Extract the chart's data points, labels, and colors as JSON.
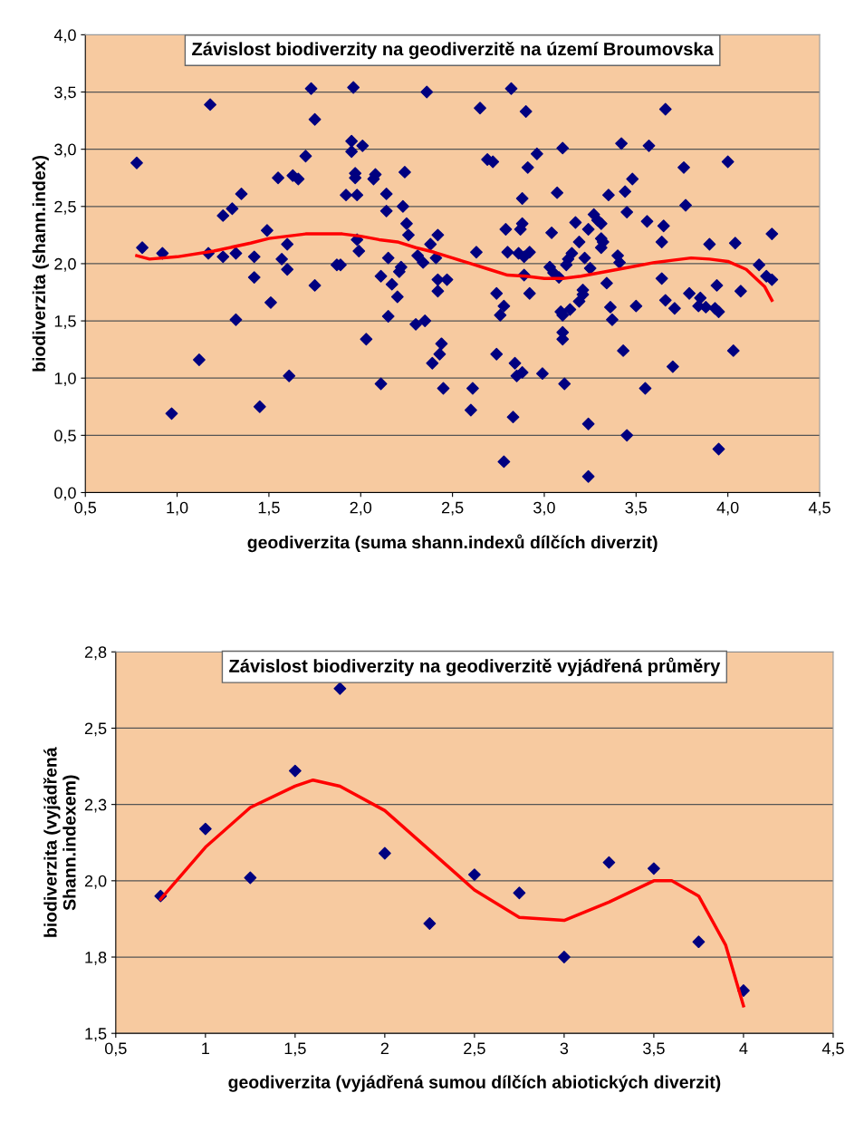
{
  "chart_data": [
    {
      "type": "scatter",
      "title": "Závislost biodiverzity na geodiverzitě na území Broumovska",
      "xlabel": "geodiverzita (suma shann.indexů dílčích diverzit)",
      "ylabel": "biodiverzita (shann.index)",
      "xlim": [
        0.5,
        4.5
      ],
      "xticks": [
        {
          "value": 0.5,
          "label": "0,5"
        },
        {
          "value": 1.0,
          "label": "1,0"
        },
        {
          "value": 1.5,
          "label": "1,5"
        },
        {
          "value": 2.0,
          "label": "2,0"
        },
        {
          "value": 2.5,
          "label": "2,5"
        },
        {
          "value": 3.0,
          "label": "3,0"
        },
        {
          "value": 3.5,
          "label": "3,5"
        },
        {
          "value": 4.0,
          "label": "4,0"
        },
        {
          "value": 4.5,
          "label": "4,5"
        }
      ],
      "ylim": [
        0,
        4
      ],
      "yticks": [
        {
          "value": 0,
          "label": "0,0"
        },
        {
          "value": 0.5,
          "label": "0,5"
        },
        {
          "value": 1.0,
          "label": "1,0"
        },
        {
          "value": 1.5,
          "label": "1,5"
        },
        {
          "value": 2.0,
          "label": "2,0"
        },
        {
          "value": 2.5,
          "label": "2,5"
        },
        {
          "value": 3.0,
          "label": "3,0"
        },
        {
          "value": 3.5,
          "label": "3,5"
        },
        {
          "value": 4.0,
          "label": "4,0"
        }
      ],
      "grid": "y",
      "marker": "diamond",
      "series": [
        {
          "color": "#000080",
          "x": [
            0.78,
            0.81,
            0.92,
            0.97,
            1.12,
            1.17,
            1.18,
            1.25,
            1.25,
            1.3,
            1.32,
            1.32,
            1.35,
            1.42,
            1.42,
            1.45,
            1.49,
            1.51,
            1.55,
            1.57,
            1.6,
            1.6,
            1.61,
            1.63,
            1.66,
            1.7,
            1.73,
            1.75,
            1.75,
            1.87,
            1.89,
            1.92,
            1.95,
            1.95,
            1.96,
            1.97,
            1.97,
            1.98,
            1.98,
            1.99,
            2.01,
            2.03,
            2.07,
            2.08,
            2.11,
            2.11,
            2.14,
            2.14,
            2.15,
            2.15,
            2.17,
            2.2,
            2.21,
            2.22,
            2.23,
            2.24,
            2.25,
            2.26,
            2.3,
            2.31,
            2.34,
            2.35,
            2.36,
            2.38,
            2.39,
            2.41,
            2.42,
            2.42,
            2.42,
            2.43,
            2.44,
            2.45,
            2.47,
            2.6,
            2.61,
            2.63,
            2.65,
            2.69,
            2.72,
            2.74,
            2.74,
            2.76,
            2.78,
            2.78,
            2.79,
            2.8,
            2.82,
            2.83,
            2.84,
            2.85,
            2.86,
            2.87,
            2.88,
            2.88,
            2.88,
            2.89,
            2.89,
            2.9,
            2.91,
            2.92,
            2.92,
            2.96,
            2.99,
            3.03,
            3.04,
            3.05,
            3.07,
            3.08,
            3.09,
            3.1,
            3.1,
            3.1,
            3.1,
            3.11,
            3.12,
            3.13,
            3.14,
            3.15,
            3.17,
            3.19,
            3.19,
            3.21,
            3.21,
            3.22,
            3.24,
            3.24,
            3.24,
            3.25,
            3.27,
            3.29,
            3.31,
            3.31,
            3.31,
            3.32,
            3.34,
            3.35,
            3.36,
            3.37,
            3.4,
            3.41,
            3.42,
            3.43,
            3.44,
            3.45,
            3.45,
            3.48,
            3.5,
            3.55,
            3.56,
            3.57,
            3.64,
            3.64,
            3.65,
            3.66,
            3.66,
            3.7,
            3.71,
            3.76,
            3.77,
            3.79,
            3.84,
            3.85,
            3.88,
            3.9,
            3.93,
            3.94,
            3.95,
            3.95,
            4.0,
            4.03,
            4.04,
            4.07,
            4.17,
            4.21,
            4.24,
            4.24
          ],
          "values": [
            2.88,
            2.14,
            2.09,
            0.69,
            1.16,
            2.09,
            3.39,
            2.42,
            2.06,
            2.48,
            2.09,
            1.51,
            2.61,
            1.88,
            2.06,
            0.75,
            2.29,
            1.66,
            2.75,
            2.04,
            2.17,
            1.95,
            1.02,
            2.77,
            2.74,
            2.94,
            3.53,
            3.26,
            1.81,
            1.99,
            1.99,
            2.6,
            3.07,
            2.98,
            3.54,
            2.79,
            2.75,
            2.6,
            2.21,
            2.11,
            3.03,
            1.34,
            2.74,
            2.78,
            1.89,
            0.95,
            2.61,
            2.46,
            2.05,
            1.54,
            1.82,
            1.71,
            1.93,
            1.97,
            2.5,
            2.8,
            2.35,
            2.25,
            1.47,
            2.07,
            2.01,
            1.5,
            3.5,
            2.17,
            1.13,
            2.05,
            1.86,
            2.25,
            1.76,
            1.21,
            1.3,
            0.91,
            1.86,
            0.72,
            0.91,
            2.1,
            3.36,
            2.91,
            2.89,
            1.21,
            1.74,
            1.55,
            1.63,
            0.27,
            2.3,
            2.1,
            3.53,
            0.66,
            1.13,
            1.02,
            2.09,
            2.3,
            2.57,
            2.35,
            1.05,
            2.06,
            1.9,
            3.33,
            2.84,
            2.1,
            1.74,
            2.96,
            1.04,
            1.97,
            2.27,
            1.92,
            2.62,
            1.88,
            1.58,
            1.34,
            1.4,
            3.01,
            1.55,
            0.95,
            1.99,
            2.04,
            1.6,
            2.09,
            2.36,
            2.19,
            1.67,
            1.73,
            1.77,
            2.05,
            0.6,
            0.14,
            2.3,
            1.96,
            2.43,
            2.38,
            2.14,
            2.22,
            2.35,
            2.19,
            1.83,
            2.6,
            1.62,
            1.51,
            2.07,
            2.01,
            3.05,
            1.24,
            2.63,
            2.45,
            0.5,
            2.74,
            1.63,
            0.91,
            2.37,
            3.03,
            2.19,
            1.87,
            2.33,
            3.35,
            1.68,
            1.1,
            1.61,
            2.84,
            2.51,
            1.74,
            1.63,
            1.7,
            1.62,
            2.17,
            1.61,
            1.81,
            0.38,
            1.58,
            2.89,
            1.24,
            2.18,
            1.76,
            1.99,
            1.89,
            2.26,
            1.86
          ]
        },
        {
          "type": "line",
          "color": "#ff0000",
          "marker": "none",
          "x": [
            0.78,
            0.85,
            1.0,
            1.2,
            1.4,
            1.5,
            1.6,
            1.7,
            1.8,
            1.9,
            2.0,
            2.1,
            2.2,
            2.3,
            2.4,
            2.5,
            2.6,
            2.7,
            2.8,
            2.9,
            3.0,
            3.1,
            3.2,
            3.3,
            3.4,
            3.5,
            3.6,
            3.7,
            3.8,
            3.9,
            4.0,
            4.1,
            4.2,
            4.24
          ],
          "values": [
            2.07,
            2.04,
            2.06,
            2.11,
            2.18,
            2.22,
            2.24,
            2.26,
            2.26,
            2.26,
            2.24,
            2.21,
            2.19,
            2.14,
            2.1,
            2.05,
            2.0,
            1.95,
            1.9,
            1.89,
            1.87,
            1.87,
            1.89,
            1.92,
            1.95,
            1.98,
            2.01,
            2.03,
            2.05,
            2.04,
            2.02,
            1.95,
            1.8,
            1.68
          ]
        }
      ]
    },
    {
      "type": "scatter",
      "title": "Závislost biodiverzity na geodiverzitě vyjádřená průměry",
      "xlabel": "geodiverzita (vyjádřená sumou dílčích abiotických diverzit)",
      "ylabel": "biodiverzita (vyjádřená\nShann.indexem)",
      "xlim": [
        0.5,
        4.5
      ],
      "xticks": [
        {
          "value": 0.5,
          "label": "0,5"
        },
        1,
        {
          "value": 1.5,
          "label": "1,5"
        },
        2,
        {
          "value": 2.5,
          "label": "2,5"
        },
        3,
        {
          "value": 3.5,
          "label": "3,5"
        },
        4,
        {
          "value": 4.5,
          "label": "4,5"
        }
      ],
      "ylim": [
        1.5,
        2.75
      ],
      "yticks": [
        {
          "value": 1.5,
          "label": "1,5"
        },
        {
          "value": 1.75,
          "label": "1,8"
        },
        {
          "value": 2.0,
          "label": "2,0"
        },
        {
          "value": 2.25,
          "label": "2,3"
        },
        {
          "value": 2.5,
          "label": "2,5"
        },
        {
          "value": 2.75,
          "label": "2,8"
        }
      ],
      "grid": "y",
      "marker": "diamond",
      "series": [
        {
          "color": "#000080",
          "x": [
            0.75,
            1.0,
            1.25,
            1.5,
            1.75,
            2.0,
            2.25,
            2.5,
            2.75,
            3.0,
            3.25,
            3.5,
            3.75,
            4.0
          ],
          "values": [
            1.95,
            2.17,
            2.01,
            2.36,
            2.63,
            2.09,
            1.86,
            2.02,
            1.96,
            1.75,
            2.06,
            2.04,
            1.8,
            1.64
          ]
        },
        {
          "type": "line",
          "color": "#ff0000",
          "marker": "none",
          "x": [
            0.75,
            1.0,
            1.25,
            1.5,
            1.6,
            1.75,
            2.0,
            2.25,
            2.5,
            2.75,
            3.0,
            3.25,
            3.5,
            3.6,
            3.75,
            3.9,
            4.0
          ],
          "values": [
            1.94,
            2.11,
            2.24,
            2.31,
            2.33,
            2.31,
            2.23,
            2.1,
            1.97,
            1.88,
            1.87,
            1.93,
            2.0,
            2.0,
            1.95,
            1.79,
            1.59
          ]
        }
      ]
    }
  ]
}
